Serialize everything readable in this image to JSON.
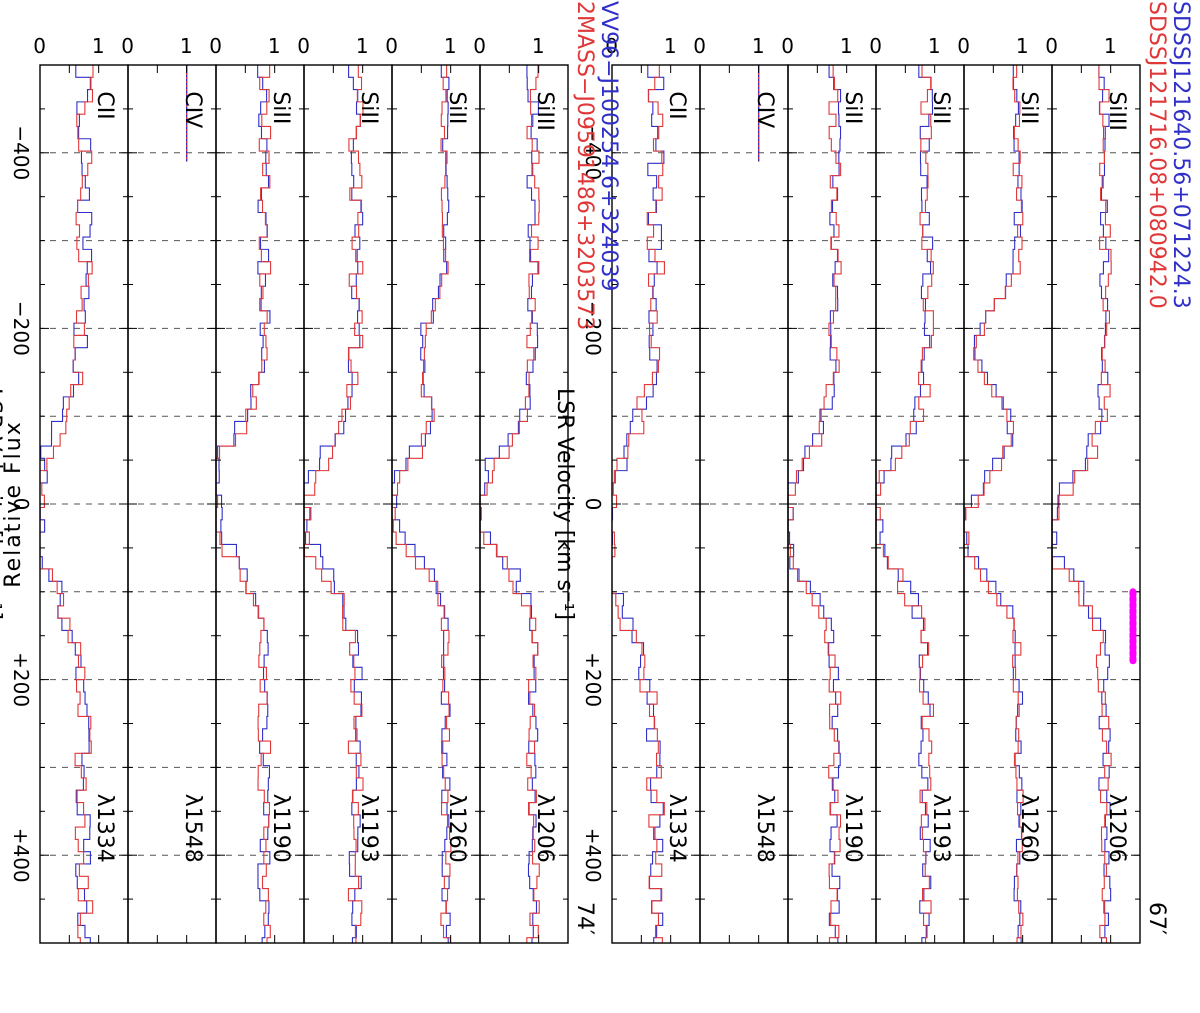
{
  "figure": {
    "ylabel": "Relative Flux",
    "colors": {
      "blue": "#3030c8",
      "red": "#e03838",
      "magenta": "#ff00ff",
      "axis": "#000000",
      "grid": "#555555"
    }
  },
  "chart_data": [
    {
      "type": "line",
      "title_blue": "SDSSJ121640.56+071224.3",
      "title_red": "SDSSJ121716.08+080942.0",
      "separation": "67′",
      "xlabel": "LSR Velocity  [km s⁻¹]",
      "ylabel": "Relative Flux",
      "xlim": [
        -500,
        500
      ],
      "ylim": [
        0,
        1.5
      ],
      "xticks": [
        "−400",
        "−200",
        "0",
        "+200",
        "+400"
      ],
      "yticks": [
        "0",
        "1"
      ],
      "marker": {
        "color": "magenta",
        "x_range": [
          100,
          180
        ],
        "y": 1.38
      },
      "panels": [
        {
          "ion": "SiIII",
          "wavelength": "λ1206",
          "seed": 11,
          "center": 20,
          "depth": 0.95,
          "width": 70,
          "noise": 0.1,
          "base": 0.9
        },
        {
          "ion": "SiII",
          "wavelength": "λ1260",
          "seed": 23,
          "center": 20,
          "depth": 0.95,
          "width": 65,
          "noise": 0.08,
          "base": 0.92,
          "second": {
            "center": -190,
            "depth": 0.75,
            "width": 40
          }
        },
        {
          "ion": "SiII",
          "wavelength": "λ1193",
          "seed": 37,
          "center": 0,
          "depth": 0.95,
          "width": 75,
          "noise": 0.12,
          "base": 0.85
        },
        {
          "ion": "SiII",
          "wavelength": "λ1190",
          "seed": 41,
          "center": 10,
          "depth": 0.95,
          "width": 80,
          "noise": 0.1,
          "base": 0.8
        },
        {
          "ion": "CIV",
          "wavelength": "λ1548",
          "seed": 0,
          "empty": true,
          "stub_x": -390
        },
        {
          "ion": "CII",
          "wavelength": "λ1334",
          "seed": 53,
          "center": 30,
          "depth": 0.95,
          "width": 110,
          "noise": 0.14,
          "base": 0.75
        }
      ]
    },
    {
      "type": "line",
      "title_blue": "VV96−J100254.6+324039",
      "title_red": "2MASS−J09591486+3203573",
      "separation": "74′",
      "xlabel": "LSR Velocity  [km s⁻¹]",
      "ylabel": "Relative Flux",
      "xlim": [
        -500,
        500
      ],
      "ylim": [
        0,
        1.5
      ],
      "xticks": [
        "−400",
        "−200",
        "0",
        "+200",
        "+400"
      ],
      "yticks": [
        "0",
        "1"
      ],
      "panels": [
        {
          "ion": "SiIII",
          "wavelength": "λ1206",
          "seed": 61,
          "center": -10,
          "depth": 0.95,
          "width": 70,
          "noise": 0.1,
          "base": 0.9
        },
        {
          "ion": "SiII",
          "wavelength": "λ1260",
          "seed": 67,
          "center": -10,
          "depth": 0.95,
          "width": 65,
          "noise": 0.08,
          "base": 0.92,
          "second": {
            "center": -180,
            "depth": 0.4,
            "width": 50
          }
        },
        {
          "ion": "SiII",
          "wavelength": "λ1193",
          "seed": 71,
          "center": 0,
          "depth": 0.95,
          "width": 75,
          "noise": 0.12,
          "base": 0.88
        },
        {
          "ion": "SiII",
          "wavelength": "λ1190",
          "seed": 79,
          "center": -20,
          "depth": 0.95,
          "width": 80,
          "noise": 0.11,
          "base": 0.82
        },
        {
          "ion": "CIV",
          "wavelength": "λ1548",
          "seed": 0,
          "empty": true,
          "stub_x": -390
        },
        {
          "ion": "CII",
          "wavelength": "λ1334",
          "seed": 83,
          "center": 0,
          "depth": 0.95,
          "width": 100,
          "noise": 0.14,
          "base": 0.75
        }
      ]
    }
  ]
}
